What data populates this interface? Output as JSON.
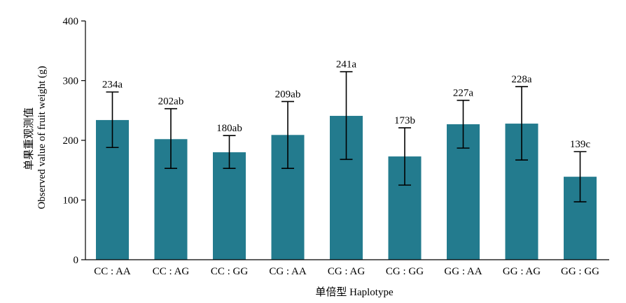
{
  "chart_data": {
    "type": "bar",
    "categories": [
      "CC : AA",
      "CC : AG",
      "CC : GG",
      "CG : AA",
      "CG : AG",
      "CG : GG",
      "GG : AA",
      "GG : AG",
      "GG : GG"
    ],
    "values": [
      234,
      202,
      180,
      209,
      241,
      173,
      227,
      228,
      139
    ],
    "error_low": [
      188,
      153,
      153,
      153,
      168,
      125,
      187,
      167,
      97
    ],
    "error_high": [
      281,
      253,
      208,
      265,
      315,
      221,
      267,
      290,
      181
    ],
    "data_labels": [
      "234a",
      "202ab",
      "180ab",
      "209ab",
      "241a",
      "173b",
      "227a",
      "228a",
      "139c"
    ],
    "title": "",
    "xlabel": "单倍型 Haplotype",
    "ylabel_cn": "单果重观测值",
    "ylabel_en": "Observed value of fruit weight (g)",
    "ylim": [
      0,
      400
    ],
    "yticks": [
      0,
      100,
      200,
      300,
      400
    ],
    "grid": false,
    "legend": "none",
    "bar_color": "#237b8e",
    "axis_color": "#000000"
  }
}
